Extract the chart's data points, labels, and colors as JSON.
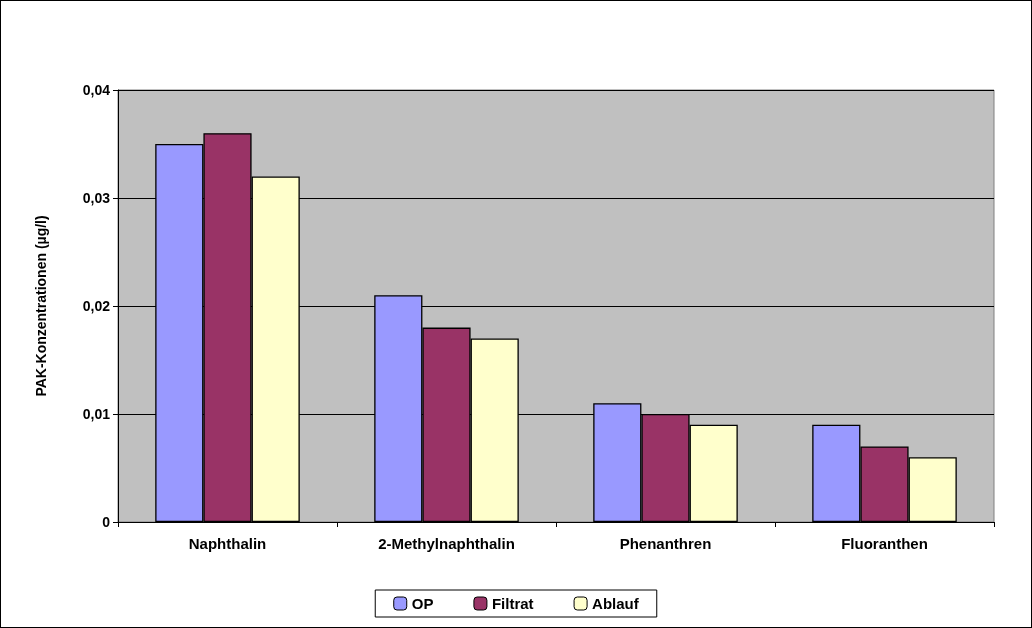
{
  "chart_data": {
    "type": "bar",
    "ylabel": "PAK-Konzentrationen (µg/l)",
    "categories": [
      "Naphthalin",
      "2-Methylnaphthalin",
      "Phenanthren",
      "Fluoranthen"
    ],
    "series": [
      {
        "name": "OP",
        "color": "#9999ff",
        "values": [
          0.035,
          0.021,
          0.011,
          0.009
        ]
      },
      {
        "name": "Filtrat",
        "color": "#993366",
        "values": [
          0.036,
          0.018,
          0.01,
          0.007
        ]
      },
      {
        "name": "Ablauf",
        "color": "#ffffcc",
        "values": [
          0.032,
          0.017,
          0.009,
          0.006
        ]
      }
    ],
    "ylim": [
      0,
      0.04
    ],
    "yticks": [
      0,
      {
        "value": 0.01,
        "label": "0,01"
      },
      {
        "value": 0.02,
        "label": "0,02"
      },
      {
        "value": 0.03,
        "label": "0,03"
      },
      {
        "value": 0.04,
        "label": "0,04"
      }
    ],
    "grid": "y",
    "legend": "bottom"
  }
}
